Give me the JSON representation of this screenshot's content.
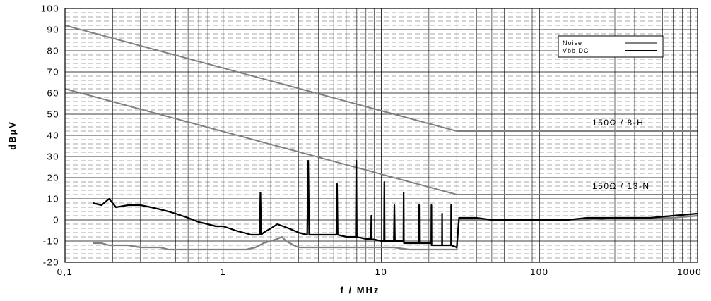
{
  "chart_data": {
    "type": "line",
    "xlabel": "f / MHz",
    "ylabel": "dBµV",
    "xscale": "log",
    "xlim": [
      0.1,
      1000
    ],
    "ylim": [
      -20,
      100
    ],
    "grid": true,
    "legend_position": "top-right",
    "x_tick_labels": [
      "0,1",
      "1",
      "10",
      "100",
      "1000"
    ],
    "x_tick_values": [
      0.1,
      1,
      10,
      100,
      1000
    ],
    "y_tick_labels": [
      "-20",
      "-10",
      "0",
      "10",
      "20",
      "30",
      "40",
      "50",
      "60",
      "70",
      "80",
      "90",
      "100"
    ],
    "y_tick_values": [
      -20,
      -10,
      0,
      10,
      20,
      30,
      40,
      50,
      60,
      70,
      80,
      90,
      100
    ],
    "limit_lines": [
      {
        "label": "150Ω / 8-H",
        "x": [
          0.1,
          30,
          1000
        ],
        "y": [
          92,
          42,
          42
        ],
        "color": "#808080"
      },
      {
        "label": "150Ω / 13-N",
        "x": [
          0.1,
          30,
          1000
        ],
        "y": [
          62,
          12,
          12
        ],
        "color": "#808080"
      }
    ],
    "series": [
      {
        "name": "Noise",
        "color": "#808080",
        "x": [
          0.15,
          0.17,
          0.19,
          0.22,
          0.25,
          0.3,
          0.35,
          0.4,
          0.45,
          0.5,
          0.6,
          0.7,
          0.8,
          0.9,
          1.0,
          1.2,
          1.4,
          1.6,
          1.8,
          2.0,
          2.2,
          2.35,
          2.5,
          2.8,
          3.0,
          3.5,
          4.0,
          5.0,
          6.0,
          7.0,
          8.0,
          9.0,
          10.0,
          12.0,
          15.0,
          20.0,
          25.0,
          30.0,
          31.0,
          40.0,
          50.0,
          70.0,
          100.0,
          150.0,
          200.0,
          300.0,
          500.0,
          700.0,
          1000.0
        ],
        "y": [
          -11,
          -11,
          -12,
          -12,
          -12,
          -13,
          -13,
          -13,
          -14,
          -14,
          -14,
          -14,
          -14,
          -14,
          -14,
          -14,
          -14,
          -13,
          -11,
          -10,
          -9,
          -8,
          -10,
          -12,
          -13,
          -13,
          -13,
          -13,
          -13,
          -13,
          -13,
          -13,
          -13,
          -13,
          -14,
          -14,
          -14,
          -14,
          0,
          0,
          0,
          0,
          0,
          0,
          0,
          1,
          1,
          1,
          2
        ]
      },
      {
        "name": "Vbb DC",
        "color": "#000000",
        "x": [
          0.15,
          0.17,
          0.19,
          0.21,
          0.25,
          0.3,
          0.35,
          0.4,
          0.45,
          0.5,
          0.6,
          0.7,
          0.8,
          0.9,
          1.0,
          1.2,
          1.5,
          1.7,
          1.72,
          1.74,
          1.8,
          2.0,
          2.2,
          2.4,
          2.6,
          2.8,
          3.0,
          3.4,
          3.45,
          3.5,
          4.0,
          5.0,
          5.2,
          5.25,
          5.3,
          6.0,
          6.9,
          6.95,
          7.0,
          8.0,
          8.6,
          8.65,
          8.7,
          10.0,
          10.4,
          10.45,
          10.5,
          12.0,
          12.1,
          12.2,
          13.8,
          13.85,
          13.9,
          16.0,
          17.3,
          17.35,
          17.4,
          20.0,
          20.7,
          20.75,
          20.8,
          23.0,
          24.2,
          24.25,
          24.3,
          26.0,
          27.6,
          27.65,
          27.7,
          30.0,
          31.0,
          40.0,
          50.0,
          70.0,
          100.0,
          150.0,
          200.0,
          300.0,
          500.0,
          700.0,
          1000.0
        ],
        "y": [
          8,
          7,
          10,
          6,
          7,
          7,
          6,
          5,
          4,
          3,
          1,
          -1,
          -2,
          -3,
          -3,
          -5,
          -7,
          -7,
          13,
          -7,
          -6,
          -4,
          -2,
          -3,
          -4,
          -5,
          -6,
          -7,
          28,
          -7,
          -7,
          -7,
          -7,
          17,
          -7,
          -8,
          -8,
          28,
          -8,
          -9,
          -9,
          2,
          -9,
          -10,
          -10,
          18,
          -10,
          -10,
          7,
          -10,
          -10,
          13,
          -11,
          -11,
          -11,
          7,
          -11,
          -11,
          -11,
          7,
          -12,
          -12,
          -12,
          3,
          -12,
          -12,
          -12,
          7,
          -12,
          -13,
          1,
          1,
          0,
          0,
          0,
          0,
          1,
          1,
          1,
          2,
          3
        ]
      }
    ]
  },
  "legend": [
    {
      "label": "Noise",
      "color": "#808080"
    },
    {
      "label": "Vbb DC",
      "color": "#000000"
    }
  ]
}
